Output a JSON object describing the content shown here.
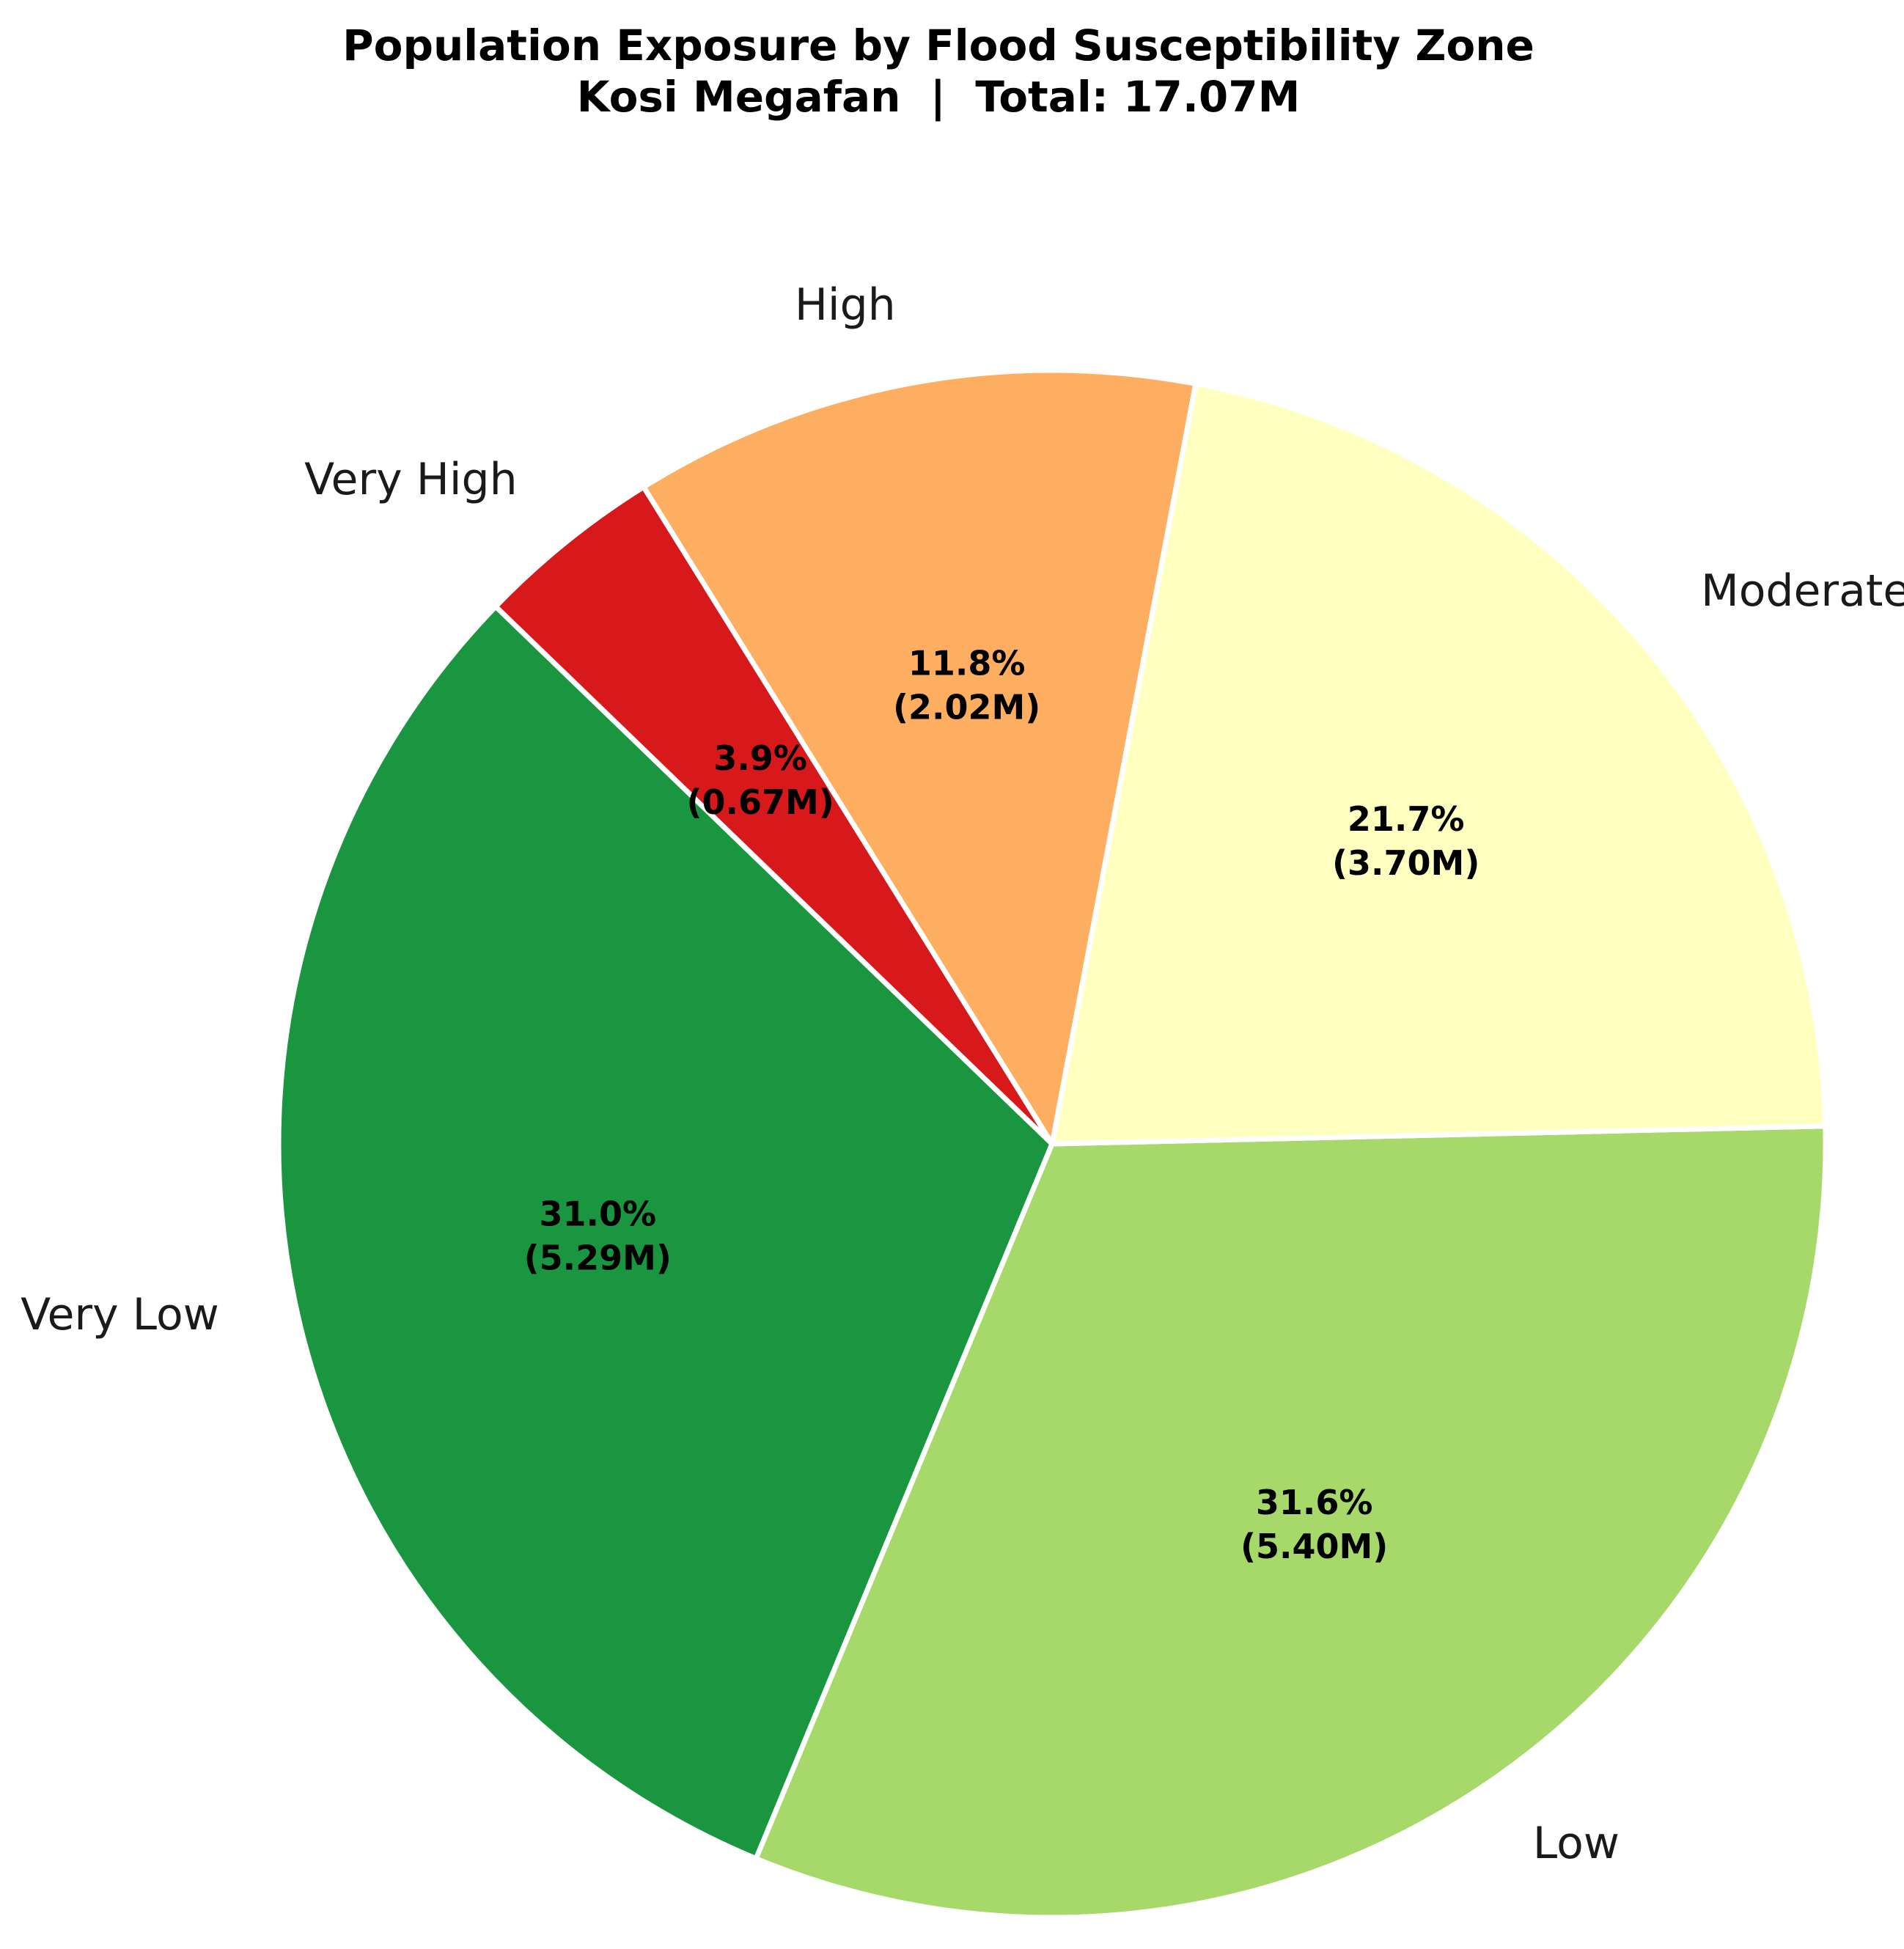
{
  "chart_data": {
    "type": "pie",
    "title": "Population Exposure by Flood Susceptibility Zone",
    "subtitle": "Kosi Megafan  |  Total: 17.07M",
    "categories": [
      "Very Low",
      "Low",
      "Moderate",
      "High",
      "Very High"
    ],
    "values": [
      5.29,
      5.4,
      3.7,
      2.02,
      0.67
    ],
    "percent_labels": [
      "31.0%",
      "31.6%",
      "21.7%",
      "11.8%",
      "3.9%"
    ],
    "value_labels": [
      "(5.29M)",
      "(5.40M)",
      "(3.70M)",
      "(2.02M)",
      "(0.67M)"
    ],
    "colors": [
      "#1a9641",
      "#a6d96a",
      "#ffffc0",
      "#fdae61",
      "#d7191c"
    ],
    "units": "M",
    "start_angle_deg": 136,
    "direction": "counterclockwise"
  }
}
